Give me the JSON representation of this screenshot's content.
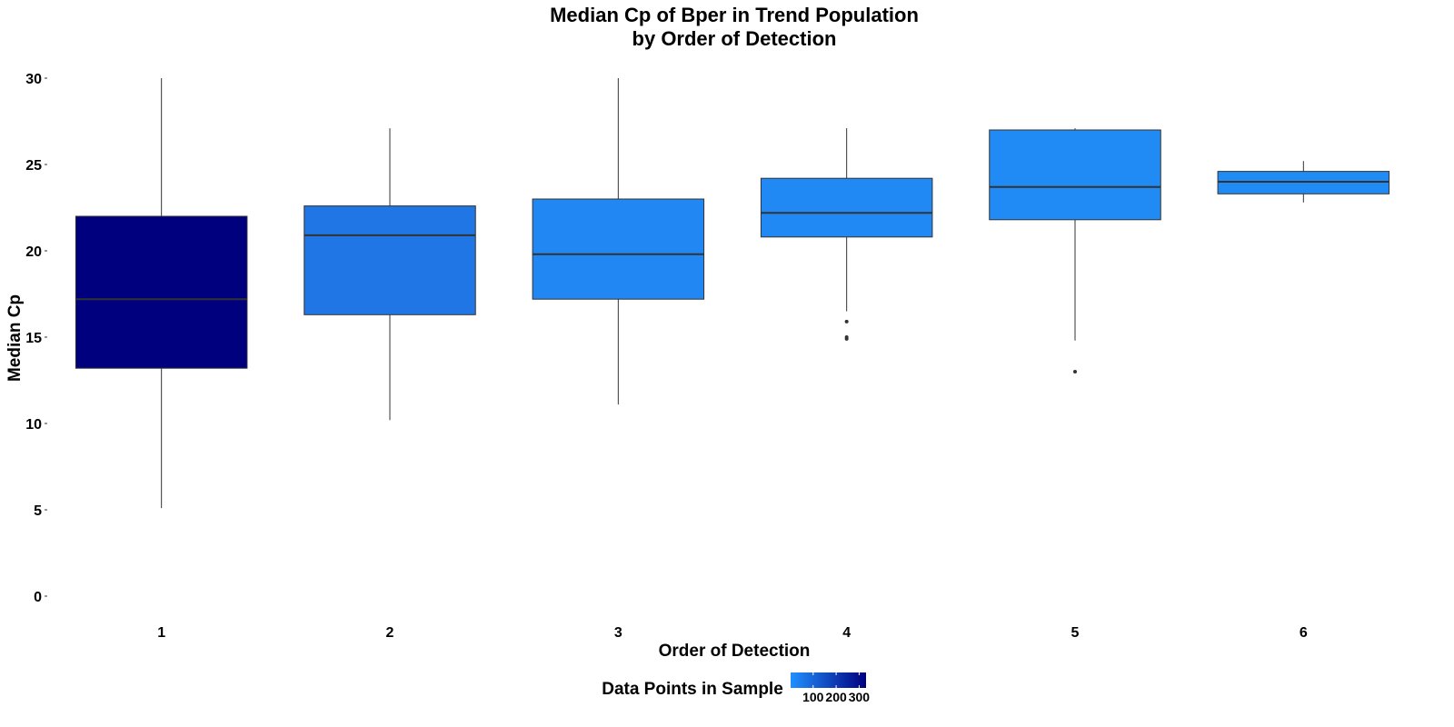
{
  "chart_data": {
    "type": "boxplot",
    "title": [
      "Median Cp of Bper in Trend Population",
      "by Order of Detection"
    ],
    "xlabel": "Order of Detection",
    "ylabel": "Median Cp",
    "ylim": [
      -1,
      31
    ],
    "yticks": [
      0,
      5,
      10,
      15,
      20,
      25,
      30
    ],
    "grid": false,
    "legend_position": "bottom",
    "categories": [
      "1",
      "2",
      "3",
      "4",
      "5",
      "6"
    ],
    "boxes": [
      {
        "category": "1",
        "whisker_low": 5.1,
        "q1": 13.2,
        "median": 17.2,
        "q3": 22.0,
        "whisker_high": 30.0,
        "outliers": [],
        "count": 330,
        "fill": "#00007f"
      },
      {
        "category": "2",
        "whisker_low": 10.2,
        "q1": 16.3,
        "median": 20.9,
        "q3": 22.6,
        "whisker_high": 27.1,
        "outliers": [],
        "count": 70,
        "fill": "#2176e6"
      },
      {
        "category": "3",
        "whisker_low": 11.1,
        "q1": 17.2,
        "median": 19.8,
        "q3": 23.0,
        "whisker_high": 30.0,
        "outliers": [],
        "count": 15,
        "fill": "#2187f2"
      },
      {
        "category": "4",
        "whisker_low": 16.5,
        "q1": 20.8,
        "median": 22.2,
        "q3": 24.2,
        "whisker_high": 27.1,
        "outliers": [
          15.9,
          15.0,
          14.9
        ],
        "count": 10,
        "fill": "#2189f4"
      },
      {
        "category": "5",
        "whisker_low": 14.8,
        "q1": 21.8,
        "median": 23.7,
        "q3": 27.0,
        "whisker_high": 27.1,
        "outliers": [
          13.0
        ],
        "count": 5,
        "fill": "#218bf5"
      },
      {
        "category": "6",
        "whisker_low": 22.8,
        "q1": 23.3,
        "median": 24.0,
        "q3": 24.6,
        "whisker_high": 25.2,
        "outliers": [],
        "count": 2,
        "fill": "#218bf5"
      }
    ],
    "legend": {
      "title": "Data Points in Sample",
      "type": "colorbar",
      "range": [
        2,
        330
      ],
      "ticks": [
        100,
        200,
        300
      ],
      "tick_labels": [
        "100",
        "200",
        "300"
      ],
      "color_low": "#2190ff",
      "color_high": "#00007f"
    }
  }
}
